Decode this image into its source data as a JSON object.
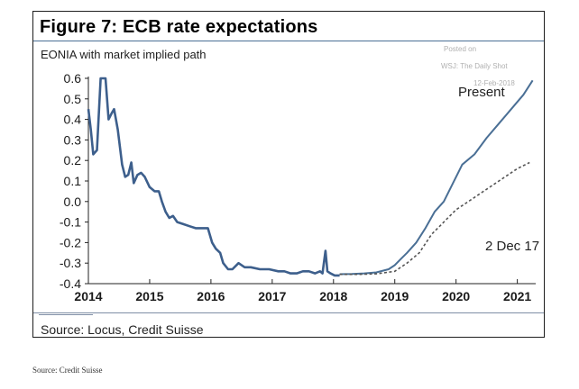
{
  "figure": {
    "title": "Figure 7: ECB rate expectations",
    "subtitle": "EONIA with market implied path",
    "source": "Source: Locus, Credit Suisse"
  },
  "watermark": {
    "posted": "Posted on",
    "outlet": "WSJ: The Daily Shot",
    "date": "12-Feb-2018"
  },
  "page_source": "Source: Credit Suisse",
  "chart_data": {
    "type": "line",
    "title": "Figure 7: ECB rate expectations",
    "subtitle": "EONIA with market implied path",
    "xlabel": "",
    "ylabel": "",
    "xlim": [
      2014,
      2021.3
    ],
    "ylim": [
      -0.4,
      0.6
    ],
    "x_ticks": [
      2014,
      2015,
      2016,
      2017,
      2018,
      2019,
      2020,
      2021
    ],
    "y_ticks": [
      0.6,
      0.5,
      0.4,
      0.3,
      0.2,
      0.1,
      0.0,
      -0.1,
      -0.2,
      -0.3,
      -0.4
    ],
    "y_tick_labels": [
      "0.6",
      "0.5",
      "0.4",
      "0.3",
      "0.2",
      "0.1",
      "0.0",
      "-0.1",
      "-0.2",
      "-0.3",
      "-0.4"
    ],
    "grid": false,
    "colors": {
      "eonia": "#3d5f8c",
      "present": "#4a6f95",
      "dec17": "#555555"
    },
    "series": [
      {
        "key": "eonia",
        "name": "",
        "style": "solid",
        "x": [
          2014.0,
          2014.04,
          2014.08,
          2014.14,
          2014.2,
          2014.28,
          2014.33,
          2014.38,
          2014.42,
          2014.48,
          2014.55,
          2014.6,
          2014.65,
          2014.7,
          2014.74,
          2014.8,
          2014.86,
          2014.92,
          2015.0,
          2015.08,
          2015.15,
          2015.2,
          2015.26,
          2015.32,
          2015.38,
          2015.45,
          2015.55,
          2015.65,
          2015.75,
          2015.85,
          2015.95,
          2016.02,
          2016.08,
          2016.15,
          2016.2,
          2016.28,
          2016.35,
          2016.45,
          2016.55,
          2016.65,
          2016.8,
          2016.95,
          2017.1,
          2017.2,
          2017.3,
          2017.4,
          2017.5,
          2017.6,
          2017.7,
          2017.78,
          2017.82,
          2017.87,
          2017.9,
          2017.95,
          2018.02,
          2018.1
        ],
        "y": [
          0.45,
          0.35,
          0.23,
          0.25,
          0.6,
          0.6,
          0.4,
          0.43,
          0.45,
          0.35,
          0.18,
          0.12,
          0.13,
          0.19,
          0.09,
          0.13,
          0.14,
          0.12,
          0.07,
          0.05,
          0.05,
          0.0,
          -0.05,
          -0.08,
          -0.07,
          -0.1,
          -0.11,
          -0.12,
          -0.13,
          -0.13,
          -0.13,
          -0.2,
          -0.23,
          -0.25,
          -0.3,
          -0.33,
          -0.33,
          -0.3,
          -0.32,
          -0.32,
          -0.33,
          -0.33,
          -0.34,
          -0.34,
          -0.35,
          -0.35,
          -0.34,
          -0.34,
          -0.35,
          -0.34,
          -0.35,
          -0.24,
          -0.34,
          -0.35,
          -0.36,
          -0.36
        ]
      },
      {
        "key": "present",
        "name": "Present",
        "style": "solid",
        "x": [
          2018.1,
          2018.3,
          2018.5,
          2018.7,
          2018.9,
          2019.0,
          2019.1,
          2019.2,
          2019.35,
          2019.5,
          2019.65,
          2019.8,
          2019.95,
          2020.1,
          2020.3,
          2020.5,
          2020.7,
          2020.9,
          2021.1,
          2021.25
        ],
        "y": [
          -0.354,
          -0.353,
          -0.35,
          -0.345,
          -0.33,
          -0.31,
          -0.28,
          -0.25,
          -0.2,
          -0.13,
          -0.05,
          0.0,
          0.09,
          0.18,
          0.23,
          0.31,
          0.38,
          0.45,
          0.52,
          0.59
        ]
      },
      {
        "key": "dec17",
        "name": "2 Dec 17",
        "style": "dashed",
        "x": [
          2018.1,
          2018.4,
          2018.7,
          2019.0,
          2019.2,
          2019.4,
          2019.6,
          2019.8,
          2020.0,
          2020.2,
          2020.4,
          2020.6,
          2020.8,
          2021.0,
          2021.2
        ],
        "y": [
          -0.355,
          -0.355,
          -0.352,
          -0.34,
          -0.3,
          -0.25,
          -0.16,
          -0.1,
          -0.04,
          0.0,
          0.04,
          0.08,
          0.12,
          0.16,
          0.19
        ]
      }
    ],
    "annotations": [
      {
        "key": "present",
        "text": "Present"
      },
      {
        "key": "dec17",
        "text": "2 Dec 17"
      }
    ]
  }
}
